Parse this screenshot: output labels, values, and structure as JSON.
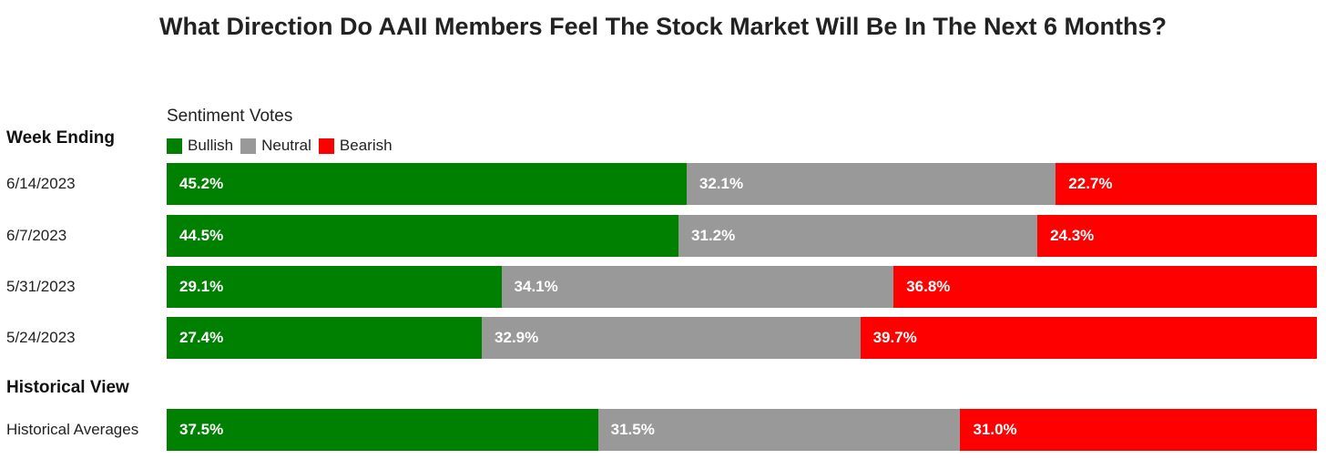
{
  "title": "What Direction Do AAII Members Feel The Stock Market Will Be In The Next 6 Months?",
  "legend_title": "Sentiment Votes",
  "week_ending_heading": "Week Ending",
  "historical_heading": "Historical View",
  "colors": {
    "Bullish": "#008000",
    "Neutral": "#999999",
    "Bearish": "#ff0000"
  },
  "chart_data": {
    "type": "bar",
    "stacked": true,
    "orientation": "horizontal",
    "categories": [
      "6/14/2023",
      "6/7/2023",
      "5/31/2023",
      "5/24/2023",
      "Historical Averages"
    ],
    "series": [
      {
        "name": "Bullish",
        "values": [
          45.2,
          44.5,
          29.1,
          27.4,
          37.5
        ],
        "labels": [
          "45.2%",
          "44.5%",
          "29.1%",
          "27.4%",
          "37.5%"
        ]
      },
      {
        "name": "Neutral",
        "values": [
          32.1,
          31.2,
          34.1,
          32.9,
          31.5
        ],
        "labels": [
          "32.1%",
          "31.2%",
          "34.1%",
          "32.9%",
          "31.5%"
        ]
      },
      {
        "name": "Bearish",
        "values": [
          22.7,
          24.3,
          36.8,
          39.7,
          31.0
        ],
        "labels": [
          "22.7%",
          "24.3%",
          "36.8%",
          "39.7%",
          "31.0%"
        ]
      }
    ],
    "legend_position": "top-left",
    "grid": false
  }
}
